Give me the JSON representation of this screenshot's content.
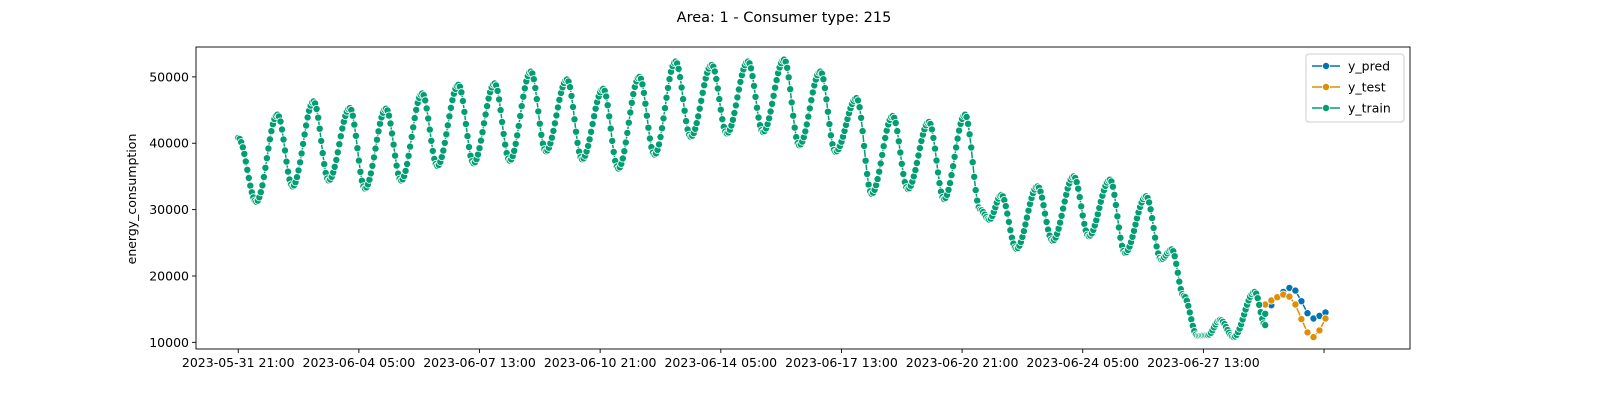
{
  "chart_data": {
    "type": "line",
    "title": "Area: 1 - Consumer type: 215",
    "xlabel": "",
    "ylabel": "energy_consumption",
    "x_ticks": [
      "2023-05-31 21:00",
      "2023-06-04 05:00",
      "2023-06-07 13:00",
      "2023-06-10 21:00",
      "2023-06-14 05:00",
      "2023-06-17 13:00",
      "2023-06-20 21:00",
      "2023-06-24 05:00",
      "2023-06-27 13:00",
      ""
    ],
    "y_ticks": [
      10000,
      20000,
      30000,
      40000,
      50000
    ],
    "xlim": [
      "2023-05-30 17:00",
      "2023-07-03 06:00"
    ],
    "ylim": [
      9000,
      54500
    ],
    "grid": false,
    "legend_position": "top-right",
    "series": [
      {
        "name": "y_pred",
        "color": "#0173b2",
        "points": [
          [
            "2023-06-29 10:00",
            15600
          ],
          [
            "2023-06-29 14:00",
            16900
          ],
          [
            "2023-06-29 18:00",
            17600
          ],
          [
            "2023-06-29 22:00",
            18200
          ],
          [
            "2023-06-30 02:00",
            17800
          ],
          [
            "2023-06-30 06:00",
            16200
          ],
          [
            "2023-06-30 10:00",
            14400
          ],
          [
            "2023-06-30 14:00",
            13600
          ],
          [
            "2023-06-30 18:00",
            14000
          ],
          [
            "2023-06-30 22:00",
            14500
          ]
        ]
      },
      {
        "name": "y_test",
        "color": "#de8f05",
        "points": [
          [
            "2023-06-29 06:00",
            15700
          ],
          [
            "2023-06-29 10:00",
            16300
          ],
          [
            "2023-06-29 14:00",
            16800
          ],
          [
            "2023-06-29 18:00",
            17200
          ],
          [
            "2023-06-29 22:00",
            16900
          ],
          [
            "2023-06-30 02:00",
            15700
          ],
          [
            "2023-06-30 06:00",
            13500
          ],
          [
            "2023-06-30 10:00",
            11500
          ],
          [
            "2023-06-30 14:00",
            10800
          ],
          [
            "2023-06-30 18:00",
            11800
          ],
          [
            "2023-06-30 22:00",
            13600
          ]
        ]
      },
      {
        "name": "y_train",
        "color": "#029e73",
        "extrema": [
          [
            "2023-05-31 21:00",
            40800
          ],
          [
            "2023-06-01 09:00",
            31200
          ],
          [
            "2023-06-01 23:00",
            44300
          ],
          [
            "2023-06-02 09:00",
            33500
          ],
          [
            "2023-06-02 23:00",
            46300
          ],
          [
            "2023-06-03 09:00",
            34400
          ],
          [
            "2023-06-03 23:00",
            45300
          ],
          [
            "2023-06-04 09:00",
            33200
          ],
          [
            "2023-06-04 23:00",
            45200
          ],
          [
            "2023-06-05 09:00",
            34400
          ],
          [
            "2023-06-05 23:00",
            47500
          ],
          [
            "2023-06-06 09:00",
            36600
          ],
          [
            "2023-06-06 23:00",
            48800
          ],
          [
            "2023-06-07 09:00",
            37000
          ],
          [
            "2023-06-07 23:00",
            49000
          ],
          [
            "2023-06-08 09:00",
            37400
          ],
          [
            "2023-06-08 23:00",
            50800
          ],
          [
            "2023-06-09 09:00",
            38800
          ],
          [
            "2023-06-09 23:00",
            49600
          ],
          [
            "2023-06-10 09:00",
            37600
          ],
          [
            "2023-06-10 23:00",
            48200
          ],
          [
            "2023-06-11 09:00",
            36200
          ],
          [
            "2023-06-11 23:00",
            50000
          ],
          [
            "2023-06-12 09:00",
            38300
          ],
          [
            "2023-06-12 23:00",
            52300
          ],
          [
            "2023-06-13 09:00",
            41000
          ],
          [
            "2023-06-13 23:00",
            51800
          ],
          [
            "2023-06-14 09:00",
            41500
          ],
          [
            "2023-06-14 23:00",
            52300
          ],
          [
            "2023-06-15 09:00",
            41700
          ],
          [
            "2023-06-15 23:00",
            52600
          ],
          [
            "2023-06-16 09:00",
            39700
          ],
          [
            "2023-06-16 23:00",
            50800
          ],
          [
            "2023-06-17 09:00",
            38700
          ],
          [
            "2023-06-17 23:00",
            46800
          ],
          [
            "2023-06-18 09:00",
            32400
          ],
          [
            "2023-06-18 23:00",
            44100
          ],
          [
            "2023-06-19 09:00",
            33100
          ],
          [
            "2023-06-19 23:00",
            43200
          ],
          [
            "2023-06-20 09:00",
            31600
          ],
          [
            "2023-06-20 23:00",
            44300
          ],
          [
            "2023-06-21 09:00",
            30000
          ],
          [
            "2023-06-21 15:00",
            28500
          ],
          [
            "2023-06-21 23:00",
            32200
          ],
          [
            "2023-06-22 09:00",
            24100
          ],
          [
            "2023-06-22 23:00",
            33500
          ],
          [
            "2023-06-23 09:00",
            25300
          ],
          [
            "2023-06-23 23:00",
            35000
          ],
          [
            "2023-06-24 09:00",
            26000
          ],
          [
            "2023-06-24 23:00",
            34500
          ],
          [
            "2023-06-25 09:00",
            23500
          ],
          [
            "2023-06-25 23:00",
            32000
          ],
          [
            "2023-06-26 09:00",
            22500
          ],
          [
            "2023-06-26 16:00",
            24000
          ],
          [
            "2023-06-27 00:00",
            17000
          ],
          [
            "2023-06-27 09:00",
            11000
          ],
          [
            "2023-06-27 16:00",
            11100
          ],
          [
            "2023-06-28 00:00",
            13400
          ],
          [
            "2023-06-28 09:00",
            10800
          ],
          [
            "2023-06-28 23:00",
            17600
          ],
          [
            "2023-06-29 06:00",
            12600
          ],
          [
            "2023-06-29 06:00",
            14300
          ]
        ]
      }
    ]
  }
}
